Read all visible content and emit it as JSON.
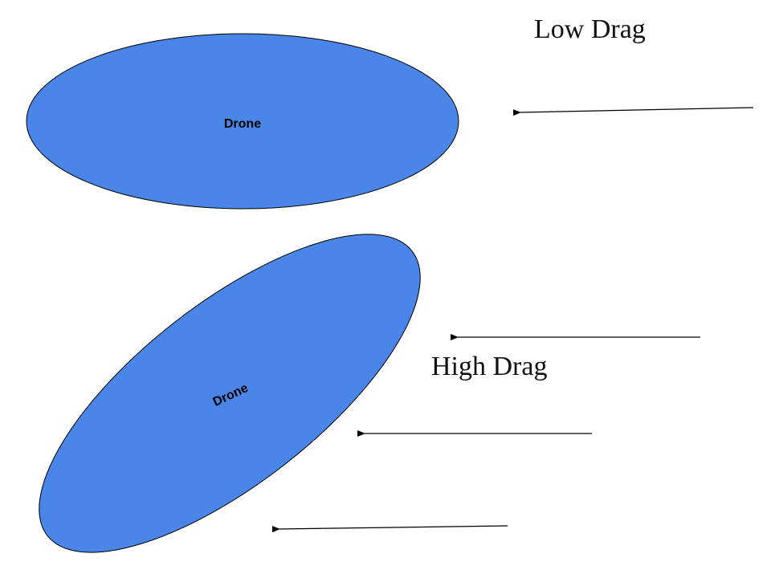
{
  "labels": {
    "low_drag": "Low Drag",
    "high_drag": "High Drag",
    "drone_level": "Drone",
    "drone_tilted": "Drone"
  },
  "colors": {
    "drone_fill": "#4a86e8",
    "outline": "#000000"
  }
}
